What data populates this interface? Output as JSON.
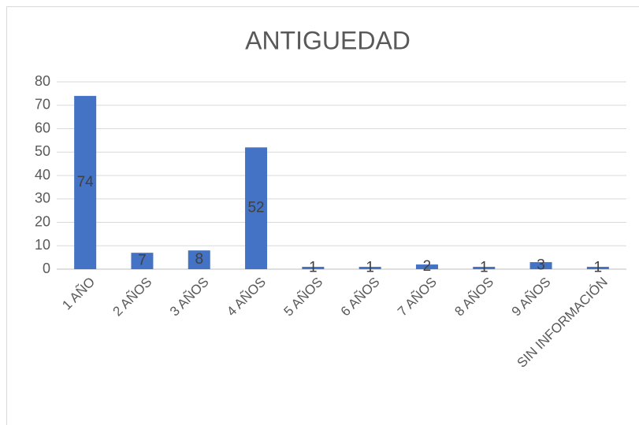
{
  "chart_data": {
    "type": "bar",
    "title": "ANTIGUEDAD",
    "categories": [
      "1 AÑO",
      "2 AÑOS",
      "3 AÑOS",
      "4 AÑOS",
      "5 AÑOS",
      "6 AÑOS",
      "7 AÑOS",
      "8 AÑOS",
      "9 AÑOS",
      "SIN INFORMACIÓN"
    ],
    "values": [
      74,
      7,
      8,
      52,
      1,
      1,
      2,
      1,
      3,
      1
    ],
    "color": "#4472c4",
    "ylim": [
      0,
      80
    ],
    "yticks": [
      0,
      10,
      20,
      30,
      40,
      50,
      60,
      70,
      80
    ],
    "grid": true
  }
}
